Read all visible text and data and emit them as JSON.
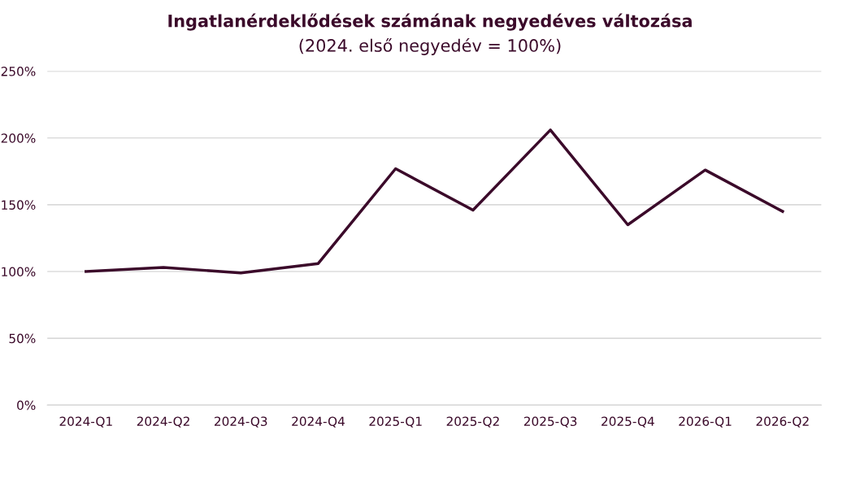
{
  "chart_data": {
    "type": "line",
    "title": "Ingatlanérdeklődések számának negyedéves változása",
    "subtitle": "(2024. első negyedév = 100%)",
    "categories": [
      "2024-Q1",
      "2024-Q2",
      "2024-Q3",
      "2024-Q4",
      "2025-Q1",
      "2025-Q2",
      "2025-Q3",
      "2025-Q4",
      "2026-Q1",
      "2026-Q2"
    ],
    "series": [
      {
        "color": "#3b0a2a",
        "values": [
          100,
          103,
          99,
          106,
          177,
          146,
          206,
          135,
          176,
          145
        ]
      }
    ],
    "ylim": [
      0,
      250
    ],
    "yticks": [
      {
        "value": 0,
        "label": "0%"
      },
      {
        "value": 50,
        "label": "50%"
      },
      {
        "value": 100,
        "label": "100%"
      },
      {
        "value": 150,
        "label": "150%"
      },
      {
        "value": 200,
        "label": "200%"
      },
      {
        "value": 250,
        "label": "250%"
      }
    ],
    "grid": "y",
    "marker": "none",
    "line_style": "solid"
  }
}
